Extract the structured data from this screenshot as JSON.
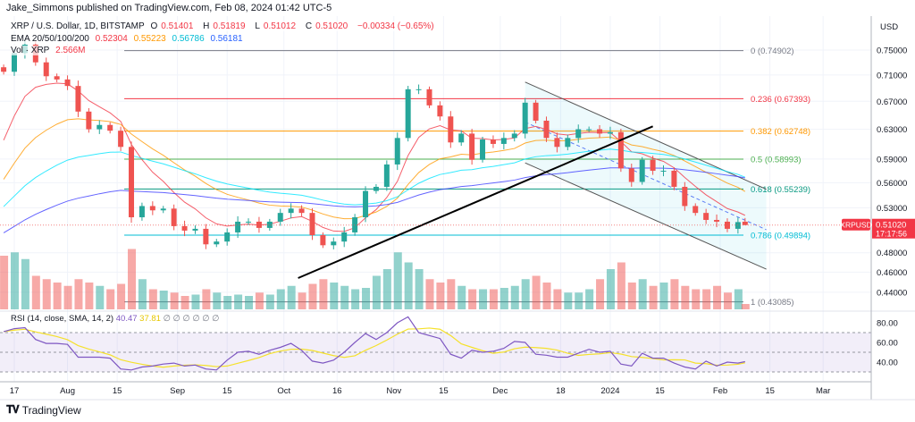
{
  "header": {
    "published": "Jake_Simmons published on TradingView.com, Feb 08, 2024 01:42 UTC-5"
  },
  "legend": {
    "symbol": "XRP / U.S. Dollar, 1D, BITSTAMP",
    "o_label": "O",
    "o": "0.51401",
    "h_label": "H",
    "h": "0.51819",
    "l_label": "L",
    "l": "0.51012",
    "c_label": "C",
    "c": "0.51020",
    "change": "−0.00334 (−0.65%)",
    "ema_label": "EMA 20/50/100/200",
    "ema20": "0.52304",
    "ema50": "0.55223",
    "ema100": "0.56786",
    "ema200": "0.56181",
    "vol_label": "Vol · XRP",
    "vol": "2.566M"
  },
  "rsi_legend": {
    "label": "RSI (14, close, SMA, 14, 2)",
    "rsi": "40.47",
    "sma": "37.81",
    "empty": "∅ ∅ ∅ ∅ ∅ ∅"
  },
  "price_label": {
    "symbol": "XRPUSD",
    "price": "0.51020",
    "countdown": "17:17:56"
  },
  "brand": {
    "name": "TradingView",
    "logo_text": "TV"
  },
  "colors": {
    "up": "#26a69a",
    "down": "#ef5350",
    "ema20": "#f23645",
    "ema50": "#ff9800",
    "ema100": "#00e5ff",
    "ema200": "#3d3dff",
    "rsi": "#7e57c2",
    "rsi_sma": "#f5e12b"
  },
  "chart_data": {
    "type": "candlestick",
    "price_scale": "log",
    "ylim": [
      0.42,
      0.78
    ],
    "price_ticks": [
      "0.75000",
      "0.71000",
      "0.67000",
      "0.63000",
      "0.59000",
      "0.56000",
      "0.53000",
      "0.48000",
      "0.46000",
      "0.44000"
    ],
    "time_ticks": [
      {
        "label": "17",
        "date": "2023-07-17"
      },
      {
        "label": "Aug",
        "date": "2023-08-01"
      },
      {
        "label": "15",
        "date": "2023-08-15"
      },
      {
        "label": "Sep",
        "date": "2023-09-01"
      },
      {
        "label": "15",
        "date": "2023-09-15"
      },
      {
        "label": "Oct",
        "date": "2023-10-01"
      },
      {
        "label": "16",
        "date": "2023-10-16"
      },
      {
        "label": "Nov",
        "date": "2023-11-01"
      },
      {
        "label": "15",
        "date": "2023-11-15"
      },
      {
        "label": "Dec",
        "date": "2023-12-01"
      },
      {
        "label": "18",
        "date": "2023-12-18"
      },
      {
        "label": "2024",
        "date": "2024-01-01"
      },
      {
        "label": "15",
        "date": "2024-01-15"
      },
      {
        "label": "Feb",
        "date": "2024-02-01"
      },
      {
        "label": "15",
        "date": "2024-02-15"
      },
      {
        "label": "Mar",
        "date": "2024-03-01"
      }
    ],
    "candles_close": [
      [
        "2023-07-14",
        0.715
      ],
      [
        "2023-07-17",
        0.745
      ],
      [
        "2023-07-20",
        0.759
      ],
      [
        "2023-07-23",
        0.73
      ],
      [
        "2023-07-26",
        0.708
      ],
      [
        "2023-07-29",
        0.703
      ],
      [
        "2023-08-01",
        0.693
      ],
      [
        "2023-08-04",
        0.655
      ],
      [
        "2023-08-07",
        0.63
      ],
      [
        "2023-08-10",
        0.636
      ],
      [
        "2023-08-13",
        0.628
      ],
      [
        "2023-08-16",
        0.606
      ],
      [
        "2023-08-19",
        0.519
      ],
      [
        "2023-08-22",
        0.532
      ],
      [
        "2023-08-25",
        0.527
      ],
      [
        "2023-08-28",
        0.529
      ],
      [
        "2023-08-31",
        0.509
      ],
      [
        "2023-09-03",
        0.504
      ],
      [
        "2023-09-06",
        0.506
      ],
      [
        "2023-09-09",
        0.489
      ],
      [
        "2023-09-12",
        0.492
      ],
      [
        "2023-09-15",
        0.502
      ],
      [
        "2023-09-18",
        0.514
      ],
      [
        "2023-09-21",
        0.514
      ],
      [
        "2023-09-24",
        0.507
      ],
      [
        "2023-09-27",
        0.514
      ],
      [
        "2023-09-30",
        0.524
      ],
      [
        "2023-10-03",
        0.529
      ],
      [
        "2023-10-06",
        0.524
      ],
      [
        "2023-10-09",
        0.499
      ],
      [
        "2023-10-12",
        0.488
      ],
      [
        "2023-10-15",
        0.492
      ],
      [
        "2023-10-18",
        0.502
      ],
      [
        "2023-10-21",
        0.519
      ],
      [
        "2023-10-24",
        0.55
      ],
      [
        "2023-10-27",
        0.555
      ],
      [
        "2023-10-30",
        0.583
      ],
      [
        "2023-11-02",
        0.618
      ],
      [
        "2023-11-05",
        0.688
      ],
      [
        "2023-11-08",
        0.688
      ],
      [
        "2023-11-11",
        0.664
      ],
      [
        "2023-11-14",
        0.648
      ],
      [
        "2023-11-17",
        0.612
      ],
      [
        "2023-11-20",
        0.624
      ],
      [
        "2023-11-23",
        0.589
      ],
      [
        "2023-11-26",
        0.616
      ],
      [
        "2023-11-29",
        0.61
      ],
      [
        "2023-12-02",
        0.618
      ],
      [
        "2023-12-05",
        0.624
      ],
      [
        "2023-12-08",
        0.668
      ],
      [
        "2023-12-11",
        0.642
      ],
      [
        "2023-12-14",
        0.618
      ],
      [
        "2023-12-17",
        0.606
      ],
      [
        "2023-12-20",
        0.618
      ],
      [
        "2023-12-23",
        0.63
      ],
      [
        "2023-12-26",
        0.63
      ],
      [
        "2023-12-29",
        0.624
      ],
      [
        "2024-01-01",
        0.626
      ],
      [
        "2024-01-04",
        0.578
      ],
      [
        "2024-01-07",
        0.561
      ],
      [
        "2024-01-10",
        0.589
      ],
      [
        "2024-01-13",
        0.575
      ],
      [
        "2024-01-16",
        0.575
      ],
      [
        "2024-01-19",
        0.555
      ],
      [
        "2024-01-22",
        0.532
      ],
      [
        "2024-01-25",
        0.524
      ],
      [
        "2024-01-28",
        0.516
      ],
      [
        "2024-01-31",
        0.514
      ],
      [
        "2024-02-03",
        0.506
      ],
      [
        "2024-02-06",
        0.51354
      ],
      [
        "2024-02-08",
        0.5102
      ]
    ],
    "last_candle": {
      "open": 0.51401,
      "high": 0.51819,
      "low": 0.51012,
      "close": 0.5102
    },
    "volume": [
      80,
      85,
      75,
      50,
      45,
      40,
      35,
      45,
      40,
      35,
      30,
      38,
      90,
      45,
      30,
      28,
      25,
      20,
      22,
      30,
      25,
      20,
      22,
      20,
      25,
      22,
      30,
      35,
      25,
      38,
      45,
      40,
      35,
      30,
      32,
      50,
      60,
      85,
      70,
      60,
      45,
      40,
      45,
      35,
      30,
      30,
      30,
      32,
      35,
      45,
      50,
      40,
      30,
      25,
      25,
      30,
      45,
      60,
      70,
      40,
      45,
      35,
      40,
      45,
      35,
      30,
      30,
      35,
      25,
      30,
      8
    ],
    "ema_initial": {
      "ema20": 0.58,
      "ema50": 0.545,
      "ema100": 0.52,
      "ema200": 0.495
    },
    "rsi": [
      71,
      74,
      75,
      63,
      59,
      59,
      58,
      45,
      45,
      45,
      44,
      33,
      32,
      35,
      36,
      38,
      39,
      36,
      37,
      33,
      32,
      42,
      50,
      51,
      48,
      52,
      55,
      59,
      52,
      41,
      39,
      42,
      50,
      60,
      69,
      63,
      70,
      80,
      86,
      70,
      67,
      64,
      48,
      44,
      52,
      50,
      51,
      54,
      61,
      60,
      48,
      47,
      45,
      45,
      49,
      53,
      50,
      51,
      38,
      36,
      49,
      44,
      44,
      39,
      35,
      33,
      41,
      36,
      40,
      39,
      40.47
    ],
    "rsi_ticks": [
      "80.00",
      "60.00",
      "40.00"
    ],
    "fib_levels": [
      {
        "label": "0 (0.74902)",
        "price": 0.74902,
        "color": "#787b86"
      },
      {
        "label": "0.236 (0.67393)",
        "price": 0.67393,
        "color": "#f23645"
      },
      {
        "label": "0.382 (0.62748)",
        "price": 0.62748,
        "color": "#ff9800"
      },
      {
        "label": "0.5 (0.58993)",
        "price": 0.58993,
        "color": "#4caf50"
      },
      {
        "label": "0.618 (0.55239)",
        "price": 0.55239,
        "color": "#089981"
      },
      {
        "label": "0.786 (0.49894)",
        "price": 0.49894,
        "color": "#00bcd4"
      },
      {
        "label": "1 (0.43085)",
        "price": 0.43085,
        "color": "#787b86"
      }
    ],
    "fib_start_date": "2023-08-17",
    "trendline": [
      [
        "2023-10-05",
        0.454
      ],
      [
        "2024-01-13",
        0.634
      ]
    ],
    "channel": {
      "upper": [
        [
          "2023-12-08",
          0.699
        ],
        [
          "2024-02-14",
          0.552
        ]
      ],
      "middle": [
        [
          "2023-12-08",
          0.64
        ],
        [
          "2024-02-14",
          0.505
        ]
      ],
      "lower": [
        [
          "2023-12-08",
          0.585
        ],
        [
          "2024-02-14",
          0.463
        ]
      ]
    }
  }
}
